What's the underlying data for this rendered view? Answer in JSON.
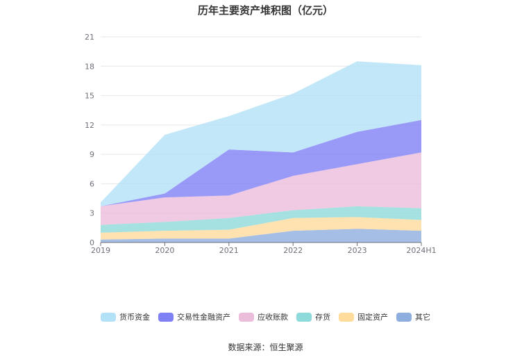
{
  "chart_data": {
    "type": "area",
    "stacked": true,
    "title": "历年主要资产堆积图（亿元）",
    "x": [
      "2019",
      "2020",
      "2021",
      "2022",
      "2023",
      "2024H1"
    ],
    "y_ticks": [
      0,
      3,
      6,
      9,
      12,
      15,
      18,
      21
    ],
    "ylim": [
      0,
      21
    ],
    "grid": true,
    "legend_position": "bottom",
    "series": [
      {
        "name": "其它",
        "color": "#8faee0",
        "values": [
          0.3,
          0.4,
          0.4,
          1.2,
          1.4,
          1.2
        ]
      },
      {
        "name": "固定资产",
        "color": "#ffdb9c",
        "values": [
          0.7,
          0.8,
          0.9,
          1.3,
          1.2,
          1.1
        ]
      },
      {
        "name": "存货",
        "color": "#8ed9d9",
        "values": [
          0.8,
          0.9,
          1.2,
          0.8,
          1.1,
          1.2
        ]
      },
      {
        "name": "应收账款",
        "color": "#ecbddb",
        "values": [
          1.9,
          2.5,
          2.3,
          3.5,
          4.3,
          5.7
        ]
      },
      {
        "name": "交易性金融资产",
        "color": "#8080f5",
        "values": [
          0.0,
          0.4,
          4.7,
          2.4,
          3.3,
          3.3
        ]
      },
      {
        "name": "货币资金",
        "color": "#b3e1f8",
        "values": [
          0.4,
          6.0,
          3.4,
          6.0,
          7.2,
          5.6
        ]
      }
    ],
    "legend_order": [
      "货币资金",
      "交易性金融资产",
      "应收账款",
      "存货",
      "固定资产",
      "其它"
    ]
  },
  "source_text": "数据来源：恒生聚源"
}
